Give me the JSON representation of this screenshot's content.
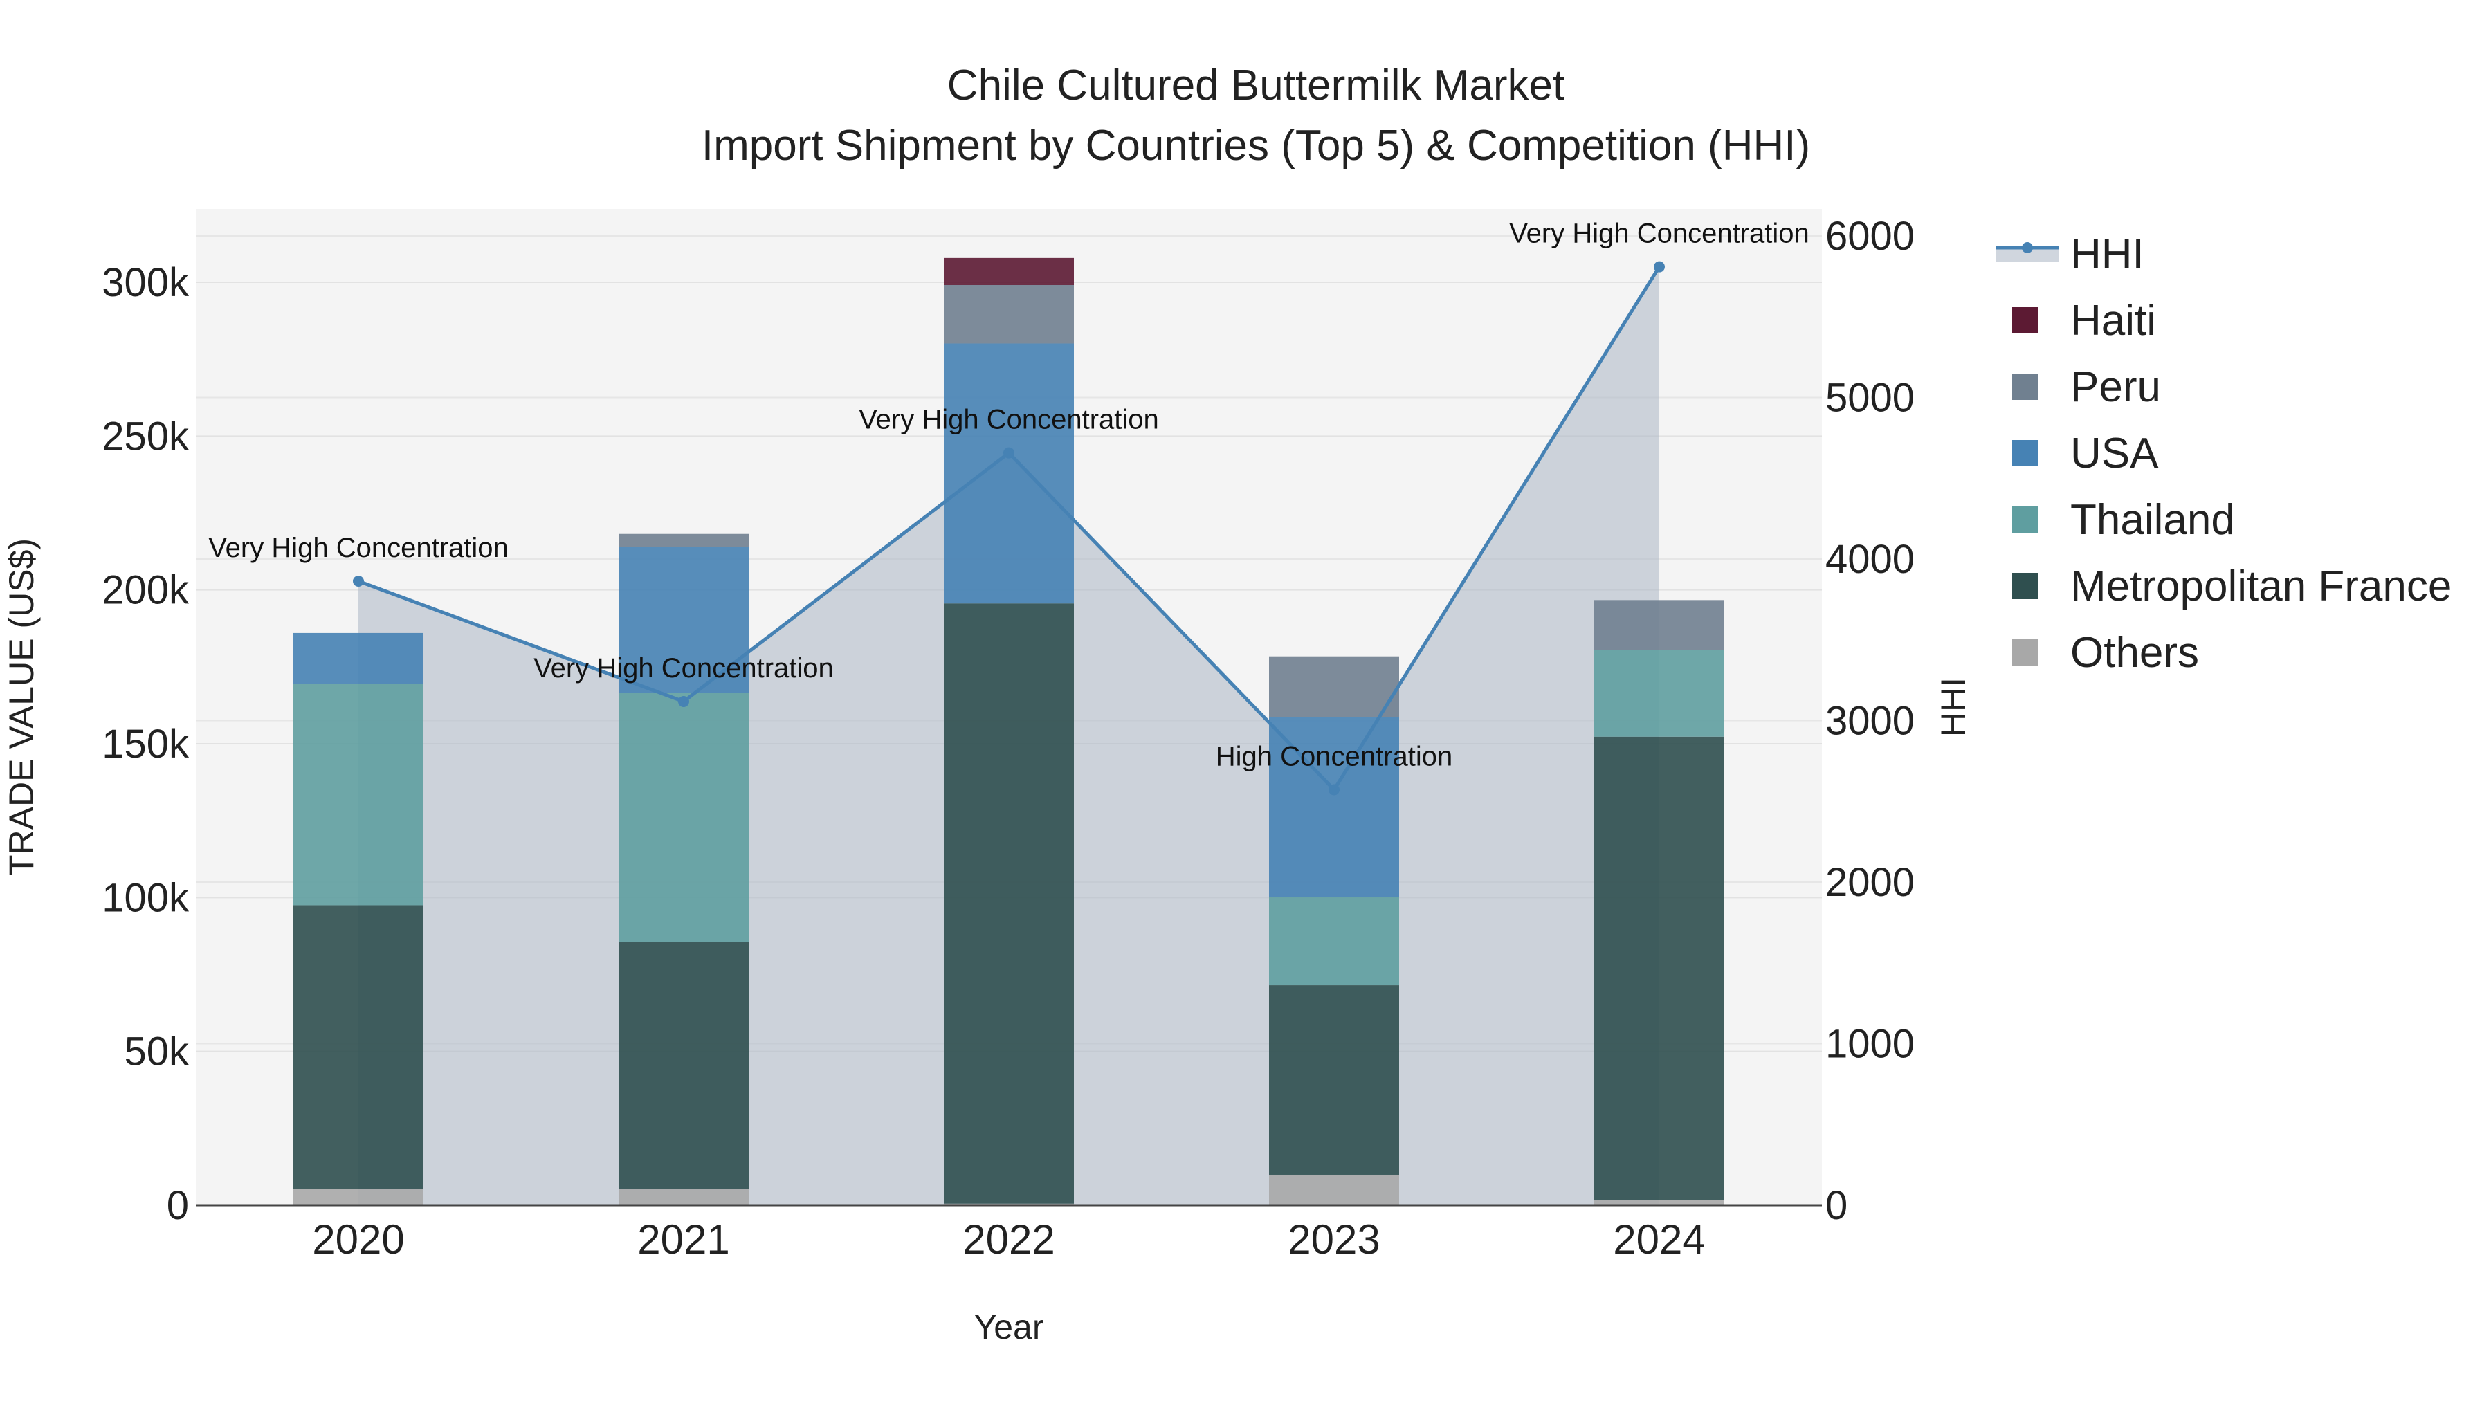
{
  "chart_data": {
    "type": "bar",
    "title": "Chile Cultured Buttermilk Market",
    "subtitle": "Import Shipment by Countries (Top 5) & Competition (HHI)",
    "xlabel": "Year",
    "ylabel": "TRADE VALUE (US$)",
    "y2label": "HHI",
    "categories": [
      "2020",
      "2021",
      "2022",
      "2023",
      "2024"
    ],
    "ylim": [
      0,
      320000
    ],
    "y2lim": [
      0,
      6200
    ],
    "yticks": [
      "0",
      "50k",
      "100k",
      "150k",
      "200k",
      "250k",
      "300k"
    ],
    "y2ticks": [
      "0",
      "1000",
      "2000",
      "3000",
      "4000",
      "5000",
      "6000"
    ],
    "stacked": true,
    "grid": true,
    "legend_position": "right",
    "series": [
      {
        "name": "Others",
        "color": "#a8a8a8",
        "values": [
          5200,
          5200,
          500,
          9900,
          1600
        ]
      },
      {
        "name": "Metropolitan France",
        "color": "#2f4f4f",
        "values": [
          92300,
          80300,
          195100,
          61600,
          150700
        ]
      },
      {
        "name": "Thailand",
        "color": "#5f9ea0",
        "values": [
          72000,
          81000,
          0,
          28700,
          28200
        ]
      },
      {
        "name": "USA",
        "color": "#4682b4",
        "values": [
          16500,
          47500,
          84500,
          58400,
          0
        ]
      },
      {
        "name": "Peru",
        "color": "#708090",
        "values": [
          0,
          4200,
          19000,
          19800,
          16200
        ]
      },
      {
        "name": "Haiti",
        "color": "#5c1a33",
        "values": [
          0,
          0,
          8800,
          0,
          0
        ]
      }
    ],
    "hhi": {
      "name": "HHI",
      "color": "#4682b4",
      "values": [
        3863,
        3118,
        4657,
        2572,
        5809
      ],
      "annotations": [
        "Very High Concentration",
        "Very High Concentration",
        "Very High Concentration",
        "High Concentration",
        "Very High Concentration"
      ]
    },
    "legend": [
      "HHI",
      "Haiti",
      "Peru",
      "USA",
      "Thailand",
      "Metropolitan France",
      "Others"
    ]
  }
}
